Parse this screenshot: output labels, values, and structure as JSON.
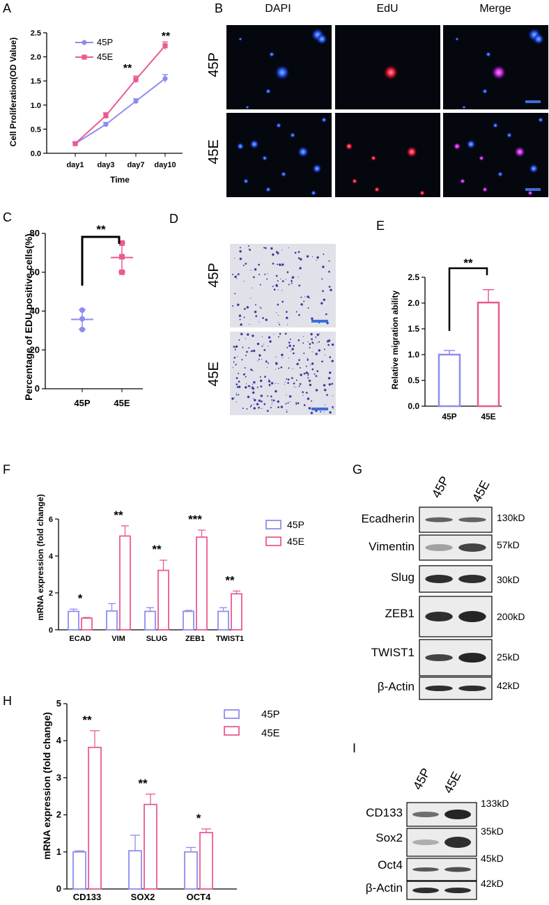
{
  "colors": {
    "p45": "#8c8cf0",
    "e45": "#ea5a93",
    "bar": "#000000",
    "scale_bar": "#3a6fd8",
    "micro_bg": "#05070f"
  },
  "panels": {
    "A": {
      "label": "A",
      "ylabel": "Cell Proliferation(OD Value)",
      "xlabel": "Time",
      "legend": [
        "45P",
        "45E"
      ],
      "sig": [
        "**",
        "**"
      ]
    },
    "B": {
      "label": "B",
      "columns": [
        "DAPI",
        "EdU",
        "Merge"
      ],
      "rows": [
        "45P",
        "45E"
      ]
    },
    "C": {
      "label": "C",
      "ylabel": "Percentage of EDU positive cells(%)",
      "sig": "**"
    },
    "D": {
      "label": "D",
      "rows": [
        "45P",
        "45E"
      ]
    },
    "E": {
      "label": "E",
      "ylabel": "Relative migration ability",
      "sig": "**"
    },
    "F": {
      "label": "F",
      "ylabel": "mRNA expression (fold change)",
      "legend": [
        "45P",
        "45E"
      ],
      "sig": [
        "*",
        "**",
        "**",
        "***",
        "**"
      ]
    },
    "G": {
      "label": "G",
      "lanes": [
        "45P",
        "45E"
      ],
      "proteins": [
        "Ecadherin",
        "Vimentin",
        "Slug",
        "ZEB1",
        "TWIST1",
        "β-Actin"
      ],
      "sizes": [
        "130kD",
        "57kD",
        "30kD",
        "200kD",
        "25kD",
        "42kD"
      ]
    },
    "H": {
      "label": "H",
      "ylabel": "mRNA expression (fold change)",
      "legend": [
        "45P",
        "45E"
      ],
      "sig": [
        "**",
        "**",
        "*"
      ]
    },
    "I": {
      "label": "I",
      "lanes": [
        "45P",
        "45E"
      ],
      "proteins": [
        "CD133",
        "Sox2",
        "Oct4",
        "β-Actin"
      ],
      "sizes": [
        "133kD",
        "35kD",
        "45kD",
        "42kD"
      ]
    }
  },
  "chart_data": [
    {
      "panel": "A",
      "type": "line",
      "categories": [
        "day1",
        "day3",
        "day7",
        "day10"
      ],
      "series": [
        {
          "name": "45P",
          "values": [
            0.2,
            0.6,
            1.08,
            1.55
          ],
          "err": [
            0.02,
            0.04,
            0.05,
            0.08
          ]
        },
        {
          "name": "45E",
          "values": [
            0.2,
            0.78,
            1.53,
            2.23
          ],
          "err": [
            0.03,
            0.06,
            0.07,
            0.08
          ]
        }
      ],
      "ylim": [
        0,
        2.5
      ],
      "yticks": [
        "0.0",
        "0.5",
        "1.0",
        "1.5",
        "2.0",
        "2.5"
      ],
      "xlabel": "Time",
      "ylabel": "Cell Proliferation(OD Value)"
    },
    {
      "panel": "C",
      "type": "scatter",
      "categories": [
        "45P",
        "45E"
      ],
      "series": [
        {
          "name": "45P",
          "points": [
            40.5,
            36,
            30.5
          ],
          "mean": 35.7,
          "sd": 5
        },
        {
          "name": "45E",
          "points": [
            75,
            68,
            60
          ],
          "mean": 67.6,
          "sd": 7.5
        }
      ],
      "ylim": [
        0,
        80
      ],
      "yticks": [
        "0",
        "20",
        "40",
        "60",
        "80"
      ],
      "ylabel": "Percentage of EDU positive cells(%)"
    },
    {
      "panel": "E",
      "type": "bar",
      "categories": [
        "45P",
        "45E"
      ],
      "values": [
        1.0,
        2.01
      ],
      "err": [
        0.08,
        0.25
      ],
      "ylim": [
        0,
        2.5
      ],
      "yticks": [
        "0.0",
        "0.5",
        "1.0",
        "1.5",
        "2.0",
        "2.5"
      ],
      "ylabel": "Relative migration ability"
    },
    {
      "panel": "F",
      "type": "bar",
      "categories": [
        "ECAD",
        "VIM",
        "SLUG",
        "ZEB1",
        "TWIST1"
      ],
      "series": [
        {
          "name": "45P",
          "values": [
            1.0,
            1.02,
            1.0,
            1.0,
            1.0
          ],
          "err": [
            0.12,
            0.4,
            0.2,
            0.05,
            0.2
          ]
        },
        {
          "name": "45E",
          "values": [
            0.63,
            5.08,
            3.22,
            5.02,
            1.95
          ],
          "err": [
            0.04,
            0.55,
            0.55,
            0.38,
            0.15
          ]
        }
      ],
      "ylim": [
        0,
        6
      ],
      "yticks": [
        "0",
        "2",
        "4",
        "6"
      ],
      "ylabel": "mRNA expression (fold change)"
    },
    {
      "panel": "H",
      "type": "bar",
      "categories": [
        "CD133",
        "SOX2",
        "OCT4"
      ],
      "series": [
        {
          "name": "45P",
          "values": [
            1.0,
            1.03,
            1.0
          ],
          "err": [
            0.03,
            0.42,
            0.12
          ]
        },
        {
          "name": "45E",
          "values": [
            3.82,
            2.28,
            1.52
          ],
          "err": [
            0.45,
            0.28,
            0.1
          ]
        }
      ],
      "ylim": [
        0,
        5
      ],
      "yticks": [
        "0",
        "1",
        "2",
        "3",
        "4",
        "5"
      ],
      "ylabel": "mRNA expression (fold change)"
    }
  ]
}
